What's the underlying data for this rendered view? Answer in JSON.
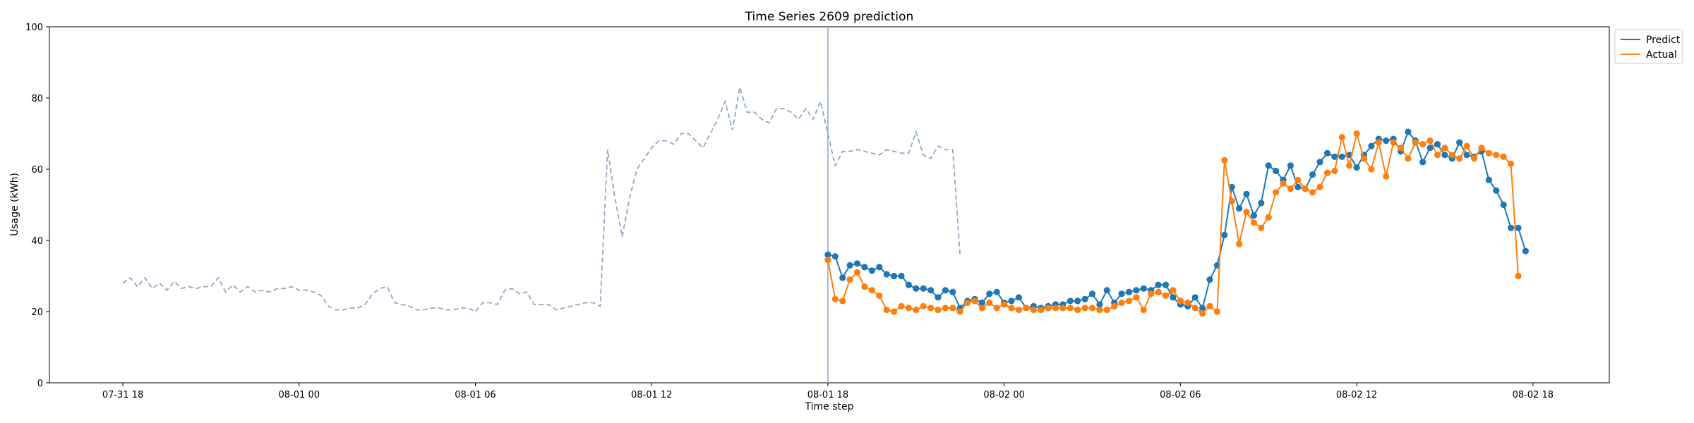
{
  "chart_data": {
    "type": "line",
    "title": "Time Series 2609 prediction",
    "xlabel": "Time step",
    "ylabel": "Usage (kWh)",
    "ylim": [
      0,
      100
    ],
    "yticks": [
      0,
      20,
      40,
      60,
      80,
      100
    ],
    "xlim_hours": [
      -2.5,
      50.6
    ],
    "xticks": [
      {
        "label": "07-31 18",
        "h": 0
      },
      {
        "label": "08-01 00",
        "h": 6
      },
      {
        "label": "08-01 06",
        "h": 12
      },
      {
        "label": "08-01 12",
        "h": 18
      },
      {
        "label": "08-01 18",
        "h": 24
      },
      {
        "label": "08-02 00",
        "h": 30
      },
      {
        "label": "08-02 06",
        "h": 36
      },
      {
        "label": "08-02 12",
        "h": 42
      },
      {
        "label": "08-02 18",
        "h": 48
      }
    ],
    "split_marker_h": 24.0,
    "step_hours": 0.25,
    "history": {
      "start_h": 0.0,
      "color": "#8fa8c8",
      "values": [
        28,
        29.5,
        27,
        29.5,
        26.5,
        28,
        26,
        28.5,
        26.5,
        27,
        26.5,
        27,
        27,
        29.5,
        25.5,
        27.5,
        25.5,
        27,
        25.5,
        26,
        25.5,
        26.5,
        26.5,
        27,
        26,
        26,
        25.5,
        24.5,
        21.5,
        20.5,
        20.5,
        21,
        21,
        22,
        25,
        26.5,
        27,
        22.5,
        22,
        21.5,
        20.5,
        20.5,
        21,
        21,
        20.5,
        20.5,
        21,
        21,
        20,
        22.5,
        22.5,
        22,
        26,
        26.5,
        25,
        25.5,
        22,
        22,
        22,
        20.5,
        21,
        21.5,
        22,
        22.5,
        22.5,
        21.5,
        65.5,
        52,
        41,
        52,
        60,
        63,
        66,
        68,
        68,
        67,
        70,
        70,
        68,
        66,
        70,
        74,
        79,
        71,
        83,
        76,
        76,
        74,
        73,
        77,
        77,
        76,
        74,
        77,
        74,
        79,
        70,
        61,
        65,
        65,
        65.5,
        65,
        64.5,
        64,
        65.5,
        65,
        64.5,
        64.5,
        70.5,
        64,
        63,
        66.5,
        65.5,
        65.5,
        36
      ]
    },
    "series": [
      {
        "name": "Predict",
        "color": "#1f77b4",
        "start_h": 24.0,
        "values": [
          36,
          35.5,
          29.5,
          33,
          33.5,
          32.5,
          31.5,
          32.5,
          30.5,
          30,
          30,
          27.5,
          26.5,
          26.5,
          26,
          24,
          26,
          25.5,
          21,
          23,
          23.5,
          22.5,
          25,
          25.5,
          22.5,
          23,
          24,
          21,
          21.5,
          21,
          21.5,
          22,
          22,
          23,
          23,
          23.5,
          25,
          22,
          26,
          22.5,
          25,
          25.5,
          26,
          26.5,
          26,
          27.5,
          27.5,
          24,
          22,
          21.5,
          24,
          21,
          29,
          33,
          41.5,
          55,
          49,
          53,
          47,
          50.5,
          61,
          59.5,
          57,
          61,
          55,
          54.5,
          58.5,
          62,
          64.5,
          63.5,
          63.5,
          64,
          60.5,
          64,
          66.5,
          68.5,
          68,
          68.5,
          65,
          70.5,
          68,
          62,
          66,
          67,
          64,
          63,
          67.5,
          64,
          63.5,
          65,
          57,
          54,
          50,
          43.5,
          43.5,
          37
        ]
      },
      {
        "name": "Actual",
        "color": "#ff7f0e",
        "start_h": 24.0,
        "values": [
          34.5,
          23.5,
          23,
          29,
          31,
          27,
          26,
          24.5,
          20.5,
          20,
          21.5,
          21,
          20.5,
          21.5,
          21,
          20.5,
          21,
          21,
          20,
          22.5,
          23,
          21,
          22.5,
          21,
          22,
          21,
          20.5,
          21,
          20.5,
          20.5,
          21,
          21,
          21,
          21,
          20.5,
          21,
          21,
          20.5,
          20.5,
          21.5,
          22.5,
          23,
          24,
          20.5,
          25,
          25.5,
          24.5,
          26,
          23,
          22.5,
          21,
          19.5,
          21.5,
          20,
          62.5,
          51,
          39,
          48,
          45,
          43.5,
          46.5,
          53.5,
          56,
          54.5,
          57,
          54.5,
          53.5,
          55,
          59,
          59.5,
          69,
          61,
          70,
          63,
          60,
          67.5,
          58,
          67.5,
          66,
          63,
          67.5,
          67,
          68,
          64,
          66,
          64,
          63,
          66.5,
          63,
          66,
          64.5,
          64,
          63.5,
          61.5,
          30
        ]
      }
    ],
    "legend": {
      "position": "top-right, outside plot"
    }
  }
}
